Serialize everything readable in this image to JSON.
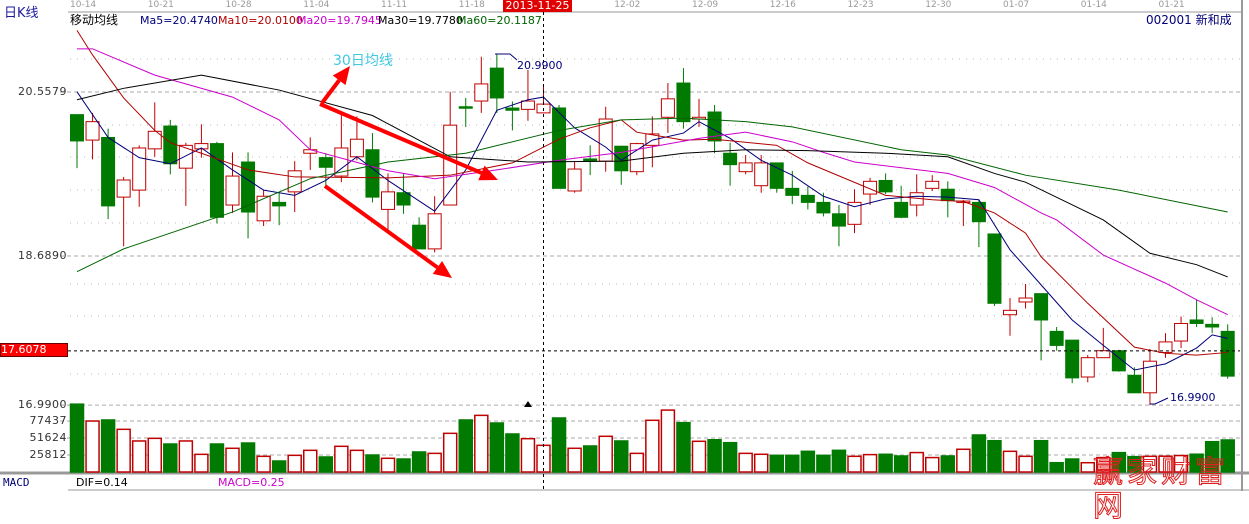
{
  "header": {
    "period_label": "日K线",
    "indicator_label": "移动均线",
    "ma5": "Ma5=20.4740",
    "ma10": "Ma10=20.0100",
    "ma20": "Ma20=19.7945",
    "ma30": "Ma30=19.7780",
    "ma60": "Ma60=20.1187",
    "stock": "002001 新和成"
  },
  "colors": {
    "up": "#c00000",
    "down": "#007a00",
    "ma5": "#00007a",
    "ma10": "#b00000",
    "ma20": "#cc00cc",
    "ma30": "#000000",
    "ma60": "#006400",
    "accent": "#ff0000",
    "annotation": "#40c8e0"
  },
  "footer": {
    "macd_label": "MACD",
    "dif": "DIF=0.14",
    "macd": "MACD=0.25"
  },
  "crosshair": {
    "date": "2013-11-25",
    "price_label": "17.6078",
    "price": 17.6078
  },
  "watermark": "赢家财富网",
  "chart_data": {
    "type": "candlestick",
    "x_tick_labels": [
      "10-14",
      "10-21",
      "10-28",
      "11-04",
      "11-11",
      "11-18",
      "2013-11-25",
      "12-02",
      "12-09",
      "12-16",
      "12-23",
      "12-30",
      "01-07",
      "01-14",
      "01-21"
    ],
    "y_tick_labels": [
      "20.5579",
      "18.6890",
      "16.9900"
    ],
    "y_ticks": [
      20.5579,
      18.689,
      16.99
    ],
    "volume_tick_labels": [
      "77437",
      "51624",
      "25812"
    ],
    "volume_ticks": [
      77437,
      51624,
      25812
    ],
    "grid": true,
    "annotations": {
      "high_label": "20.9900",
      "low_label": "16.9900",
      "ma30_note": "30日均线"
    },
    "candle_fields": [
      "date",
      "open",
      "high",
      "low",
      "close",
      "volume"
    ],
    "candles": [
      [
        "10-14",
        20.3,
        20.3,
        19.69,
        20.0,
        103000
      ],
      [
        "10-15",
        20.01,
        20.32,
        19.79,
        20.22,
        77400
      ],
      [
        "10-16",
        20.04,
        20.14,
        19.11,
        19.26,
        79000
      ],
      [
        "10-17",
        19.36,
        19.59,
        18.8,
        19.555,
        64800
      ],
      [
        "10-18",
        19.44,
        19.95,
        19.25,
        19.92,
        47100
      ],
      [
        "10-21",
        19.91,
        20.44,
        19.82,
        20.11,
        51100
      ],
      [
        "10-22",
        20.17,
        20.24,
        19.62,
        19.74,
        42500
      ],
      [
        "10-23",
        19.69,
        19.98,
        19.26,
        19.95,
        47100
      ],
      [
        "10-24",
        19.91,
        20.19,
        19.81,
        19.97,
        26800
      ],
      [
        "10-25",
        19.97,
        19.99,
        19.06,
        19.13,
        42500
      ],
      [
        "10-28",
        19.27,
        19.87,
        19.18,
        19.6,
        36000
      ],
      [
        "10-29",
        19.76,
        19.87,
        18.89,
        19.19,
        44000
      ],
      [
        "10-30",
        19.09,
        19.44,
        19.03,
        19.37,
        23800
      ],
      [
        "10-31",
        19.3,
        19.41,
        19.04,
        19.26,
        16700
      ],
      [
        "11-01",
        19.42,
        19.77,
        19.19,
        19.66,
        25300
      ],
      [
        "11-04",
        19.86,
        20.04,
        19.67,
        19.9,
        32900
      ],
      [
        "11-05",
        19.81,
        19.86,
        19.47,
        19.7,
        22800
      ],
      [
        "11-06",
        19.6,
        20.31,
        19.53,
        19.92,
        39000
      ],
      [
        "11-07",
        19.82,
        20.28,
        19.78,
        20.02,
        32900
      ],
      [
        "11-08",
        19.9,
        20.09,
        19.3,
        19.36,
        25800
      ],
      [
        "11-11",
        19.22,
        19.63,
        18.96,
        19.42,
        20800
      ],
      [
        "11-12",
        19.41,
        19.63,
        19.17,
        19.27,
        19700
      ],
      [
        "11-13",
        19.04,
        19.13,
        18.77,
        18.77,
        30400
      ],
      [
        "11-14",
        18.77,
        19.37,
        18.73,
        19.17,
        28300
      ],
      [
        "11-15",
        19.27,
        20.56,
        19.27,
        20.18,
        58700
      ],
      [
        "11-18",
        20.39,
        20.49,
        20.16,
        20.38,
        79000
      ],
      [
        "11-19",
        20.455,
        20.96,
        20.32,
        20.65,
        86000
      ],
      [
        "11-20",
        20.83,
        20.99,
        20.32,
        20.49,
        74400
      ],
      [
        "11-21",
        20.375,
        20.45,
        20.12,
        20.35,
        57700
      ],
      [
        "11-22",
        20.36,
        20.81,
        20.23,
        20.455,
        50600
      ],
      [
        "11-25",
        20.32,
        20.63,
        20.32,
        20.42,
        40500
      ],
      [
        "11-26",
        20.376,
        20.41,
        19.46,
        19.46,
        82000
      ],
      [
        "11-27",
        19.43,
        19.76,
        19.41,
        19.68,
        36000
      ],
      [
        "11-28",
        19.795,
        19.95,
        19.61,
        19.77,
        39500
      ],
      [
        "11-29",
        19.77,
        20.39,
        19.65,
        20.25,
        54200
      ],
      [
        "12-02",
        19.94,
        19.94,
        19.5,
        19.66,
        47100
      ],
      [
        "12-03",
        19.65,
        19.98,
        19.61,
        19.97,
        28300
      ],
      [
        "12-04",
        19.95,
        20.28,
        19.7,
        20.08,
        78500
      ],
      [
        "12-05",
        20.27,
        20.66,
        20.09,
        20.48,
        94000
      ],
      [
        "12-06",
        20.66,
        20.83,
        20.14,
        20.22,
        74900
      ],
      [
        "12-09",
        20.25,
        20.48,
        20.16,
        20.27,
        46600
      ],
      [
        "12-10",
        20.33,
        20.41,
        19.86,
        20.0,
        49000
      ],
      [
        "12-11",
        19.86,
        19.98,
        19.49,
        19.73,
        44500
      ],
      [
        "12-12",
        19.65,
        19.84,
        19.62,
        19.75,
        28300
      ],
      [
        "12-13",
        19.49,
        19.84,
        19.41,
        19.75,
        26900
      ],
      [
        "12-16",
        19.75,
        19.75,
        19.41,
        19.46,
        25300
      ],
      [
        "12-17",
        19.46,
        19.66,
        19.28,
        19.38,
        25300
      ],
      [
        "12-18",
        19.38,
        19.48,
        19.22,
        19.3,
        31400
      ],
      [
        "12-19",
        19.3,
        19.41,
        19.14,
        19.18,
        25300
      ],
      [
        "12-20",
        19.17,
        19.27,
        18.8,
        19.03,
        32900
      ],
      [
        "12-23",
        19.05,
        19.45,
        18.95,
        19.3,
        23800
      ],
      [
        "12-24",
        19.395,
        19.58,
        19.27,
        19.54,
        26400
      ],
      [
        "12-25",
        19.55,
        19.63,
        19.395,
        19.42,
        26900
      ],
      [
        "12-26",
        19.3,
        19.49,
        19.12,
        19.13,
        24300
      ],
      [
        "12-27",
        19.27,
        19.62,
        19.14,
        19.41,
        29500
      ],
      [
        "12-30",
        19.46,
        19.61,
        19.43,
        19.54,
        21900
      ],
      [
        "12-31",
        19.45,
        19.54,
        19.13,
        19.32,
        24300
      ],
      [
        "01-02",
        19.3,
        19.33,
        19.03,
        19.315,
        34500
      ],
      [
        "01-03",
        19.3,
        19.33,
        18.79,
        19.08,
        56200
      ],
      [
        "01-06",
        18.94,
        18.94,
        18.12,
        18.15,
        47500
      ],
      [
        "01-07",
        18.02,
        18.21,
        17.78,
        18.07,
        31400
      ],
      [
        "01-08",
        18.165,
        18.37,
        18.09,
        18.21,
        23800
      ],
      [
        "01-09",
        18.26,
        18.26,
        17.5,
        17.96,
        47500
      ],
      [
        "01-10",
        17.83,
        17.88,
        17.61,
        17.67,
        14100
      ],
      [
        "01-13",
        17.73,
        17.73,
        17.24,
        17.3,
        19700
      ],
      [
        "01-14",
        17.31,
        17.56,
        17.25,
        17.53,
        14100
      ],
      [
        "01-15",
        17.53,
        17.87,
        17.53,
        17.61,
        21900
      ],
      [
        "01-16",
        17.61,
        17.62,
        17.37,
        17.38,
        29400
      ],
      [
        "01-17",
        17.33,
        17.42,
        17.13,
        17.13,
        23300
      ],
      [
        "01-20",
        17.13,
        17.63,
        16.99,
        17.49,
        23800
      ],
      [
        "01-21",
        17.59,
        17.81,
        17.53,
        17.71,
        24000
      ],
      [
        "01-22",
        17.72,
        18.0,
        17.64,
        17.92,
        25000
      ],
      [
        "01-23",
        17.96,
        18.19,
        17.88,
        17.92,
        27000
      ],
      [
        "01-24",
        17.91,
        17.99,
        17.81,
        17.88,
        46000
      ],
      [
        "01-27",
        17.83,
        17.91,
        17.29,
        17.32,
        48600
      ]
    ],
    "series": [
      {
        "name": "Ma5",
        "points": [
          [
            "10-14",
            20.56
          ],
          [
            "10-16",
            20.04
          ],
          [
            "10-18",
            19.81
          ],
          [
            "10-22",
            19.74
          ],
          [
            "10-24",
            19.92
          ],
          [
            "10-28",
            19.67
          ],
          [
            "10-30",
            19.44
          ],
          [
            "11-01",
            19.38
          ],
          [
            "11-05",
            19.55
          ],
          [
            "11-07",
            19.82
          ],
          [
            "11-11",
            19.55
          ],
          [
            "11-14",
            19.2
          ],
          [
            "11-18",
            19.67
          ],
          [
            "11-20",
            20.35
          ],
          [
            "11-22",
            20.47
          ],
          [
            "11-25",
            20.5
          ],
          [
            "11-27",
            20.15
          ],
          [
            "11-29",
            19.93
          ],
          [
            "12-02",
            19.78
          ],
          [
            "12-04",
            20.01
          ],
          [
            "12-06",
            20.09
          ],
          [
            "12-09",
            20.22
          ],
          [
            "12-11",
            20.03
          ],
          [
            "12-13",
            19.78
          ],
          [
            "12-17",
            19.61
          ],
          [
            "12-19",
            19.37
          ],
          [
            "12-23",
            19.25
          ],
          [
            "12-25",
            19.34
          ],
          [
            "12-27",
            19.37
          ],
          [
            "12-31",
            19.36
          ],
          [
            "01-03",
            19.33
          ],
          [
            "01-07",
            18.76
          ],
          [
            "01-09",
            18.36
          ],
          [
            "01-13",
            17.96
          ],
          [
            "01-15",
            17.67
          ],
          [
            "01-17",
            17.39
          ],
          [
            "01-21",
            17.46
          ],
          [
            "01-23",
            17.64
          ],
          [
            "01-24",
            17.79
          ],
          [
            "01-27",
            17.75
          ]
        ]
      },
      {
        "name": "Ma10",
        "points": [
          [
            "10-14",
            21.26
          ],
          [
            "10-15",
            20.98
          ],
          [
            "10-17",
            20.49
          ],
          [
            "10-21",
            20.12
          ],
          [
            "10-22",
            19.98
          ],
          [
            "10-24",
            19.86
          ],
          [
            "10-29",
            19.67
          ],
          [
            "11-01",
            19.59
          ],
          [
            "11-11",
            19.58
          ],
          [
            "11-15",
            19.61
          ],
          [
            "11-21",
            19.75
          ],
          [
            "11-26",
            20.02
          ],
          [
            "11-28",
            20.15
          ],
          [
            "12-02",
            20.24
          ],
          [
            "12-03",
            20.1
          ],
          [
            "12-06",
            20.01
          ],
          [
            "12-10",
            20.02
          ],
          [
            "12-16",
            19.95
          ],
          [
            "12-18",
            19.75
          ],
          [
            "12-25",
            19.38
          ],
          [
            "12-30",
            19.33
          ],
          [
            "01-02",
            19.31
          ],
          [
            "01-06",
            19.18
          ],
          [
            "01-08",
            18.95
          ],
          [
            "01-09",
            18.68
          ],
          [
            "01-14",
            18.15
          ],
          [
            "01-17",
            17.65
          ],
          [
            "01-21",
            17.58
          ],
          [
            "01-23",
            17.56
          ],
          [
            "01-27",
            17.59
          ]
        ]
      },
      {
        "name": "Ma20",
        "points": [
          [
            "10-14",
            21.05
          ],
          [
            "10-15",
            21.05
          ],
          [
            "10-21",
            20.75
          ],
          [
            "10-28",
            20.5
          ],
          [
            "10-31",
            20.24
          ],
          [
            "11-04",
            19.9
          ],
          [
            "11-11",
            19.66
          ],
          [
            "11-14",
            19.57
          ],
          [
            "11-20",
            19.67
          ],
          [
            "11-26",
            19.78
          ],
          [
            "12-02",
            19.87
          ],
          [
            "12-09",
            20.03
          ],
          [
            "12-12",
            20.1
          ],
          [
            "12-17",
            19.99
          ],
          [
            "12-19",
            19.87
          ],
          [
            "12-23",
            19.76
          ],
          [
            "12-31",
            19.63
          ],
          [
            "01-06",
            19.47
          ],
          [
            "01-09",
            19.18
          ],
          [
            "01-10",
            19.1
          ],
          [
            "01-15",
            18.7
          ],
          [
            "01-21",
            18.38
          ],
          [
            "01-23",
            18.19
          ],
          [
            "01-27",
            18.02
          ]
        ]
      },
      {
        "name": "Ma30",
        "points": [
          [
            "10-14",
            20.47
          ],
          [
            "10-17",
            20.6
          ],
          [
            "10-24",
            20.75
          ],
          [
            "10-31",
            20.58
          ],
          [
            "11-08",
            20.29
          ],
          [
            "11-15",
            19.82
          ],
          [
            "11-22",
            19.76
          ],
          [
            "12-02",
            19.77
          ],
          [
            "12-06",
            19.86
          ],
          [
            "12-12",
            19.9
          ],
          [
            "12-18",
            19.89
          ],
          [
            "12-25",
            19.86
          ],
          [
            "12-31",
            19.82
          ],
          [
            "01-06",
            19.63
          ],
          [
            "01-08",
            19.53
          ],
          [
            "01-15",
            19.1
          ],
          [
            "01-20",
            18.72
          ],
          [
            "01-23",
            18.59
          ],
          [
            "01-27",
            18.45
          ]
        ]
      },
      {
        "name": "Ma60",
        "points": [
          [
            "10-14",
            18.51
          ],
          [
            "10-17",
            18.77
          ],
          [
            "10-28",
            19.19
          ],
          [
            "11-04",
            19.57
          ],
          [
            "11-11",
            19.76
          ],
          [
            "11-18",
            19.86
          ],
          [
            "11-26",
            20.12
          ],
          [
            "12-02",
            20.24
          ],
          [
            "12-06",
            20.26
          ],
          [
            "12-12",
            20.22
          ],
          [
            "12-17",
            20.16
          ],
          [
            "12-26",
            19.9
          ],
          [
            "12-31",
            19.84
          ],
          [
            "01-08",
            19.61
          ],
          [
            "01-16",
            19.44
          ],
          [
            "01-27",
            19.19
          ]
        ]
      }
    ]
  }
}
